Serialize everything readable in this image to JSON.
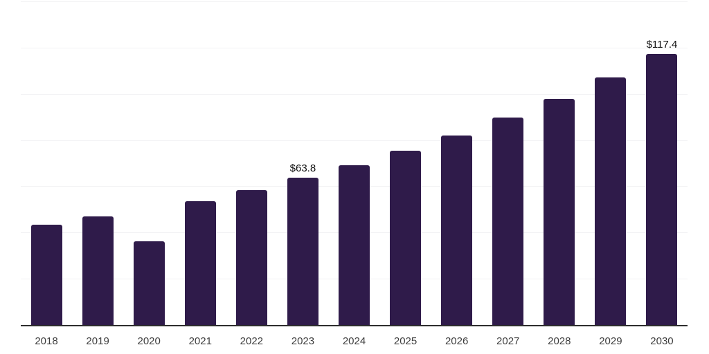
{
  "chart_data": {
    "type": "bar",
    "title": "",
    "xlabel": "",
    "ylabel": "",
    "categories": [
      "2018",
      "2019",
      "2020",
      "2021",
      "2022",
      "2023",
      "2024",
      "2025",
      "2026",
      "2027",
      "2028",
      "2029",
      "2030"
    ],
    "values": [
      43.4,
      47.0,
      36.3,
      53.7,
      58.3,
      63.8,
      69.0,
      75.3,
      82.1,
      89.7,
      97.8,
      107.2,
      117.4
    ],
    "data_labels": {
      "2023": "$63.8",
      "2030": "$117.4"
    },
    "ylim": [
      0,
      140
    ],
    "grid_step": 20,
    "grid": true,
    "legend": false,
    "y_tick_labels_visible": false,
    "colors": {
      "bar": "#2f1b4a",
      "axis_line": "#2d2d2d",
      "gridline": "#f2f2f4",
      "x_tick_label": "#3d3d3d",
      "data_label": "#111111",
      "background": "#ffffff"
    }
  }
}
